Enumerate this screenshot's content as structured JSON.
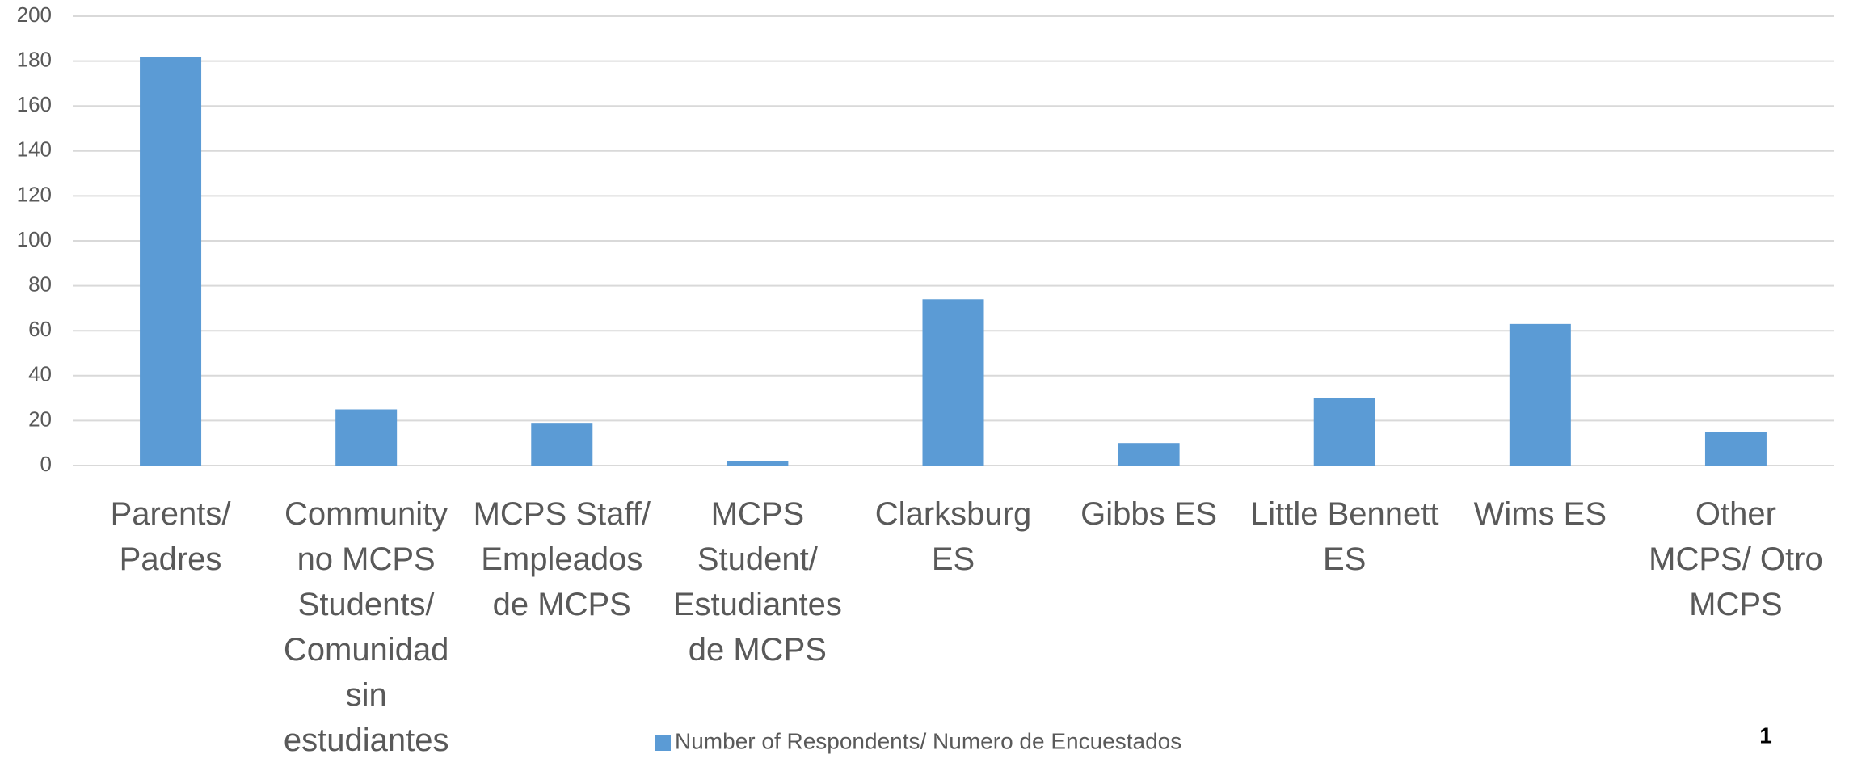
{
  "chart_data": {
    "type": "bar",
    "categories": [
      "Parents/ Padres",
      "Community no MCPS Students/ Comunidad sin estudiantes",
      "MCPS Staff/ Empleados de MCPS",
      "MCPS Student/ Estudiantes de MCPS",
      "Clarksburg ES",
      "Gibbs ES",
      "Little Bennett ES",
      "Wims ES",
      "Other MCPS/ Otro MCPS"
    ],
    "series": [
      {
        "name": "Number of Respondents/ Numero de Encuestados",
        "color": "#5b9bd5",
        "values": [
          182,
          25,
          19,
          2,
          74,
          10,
          30,
          63,
          15
        ]
      }
    ],
    "ylim": [
      0,
      200
    ],
    "yticks": [
      0,
      20,
      40,
      60,
      80,
      100,
      120,
      140,
      160,
      180,
      200
    ],
    "grid": true,
    "legend": "bottom",
    "page_number": "1"
  }
}
